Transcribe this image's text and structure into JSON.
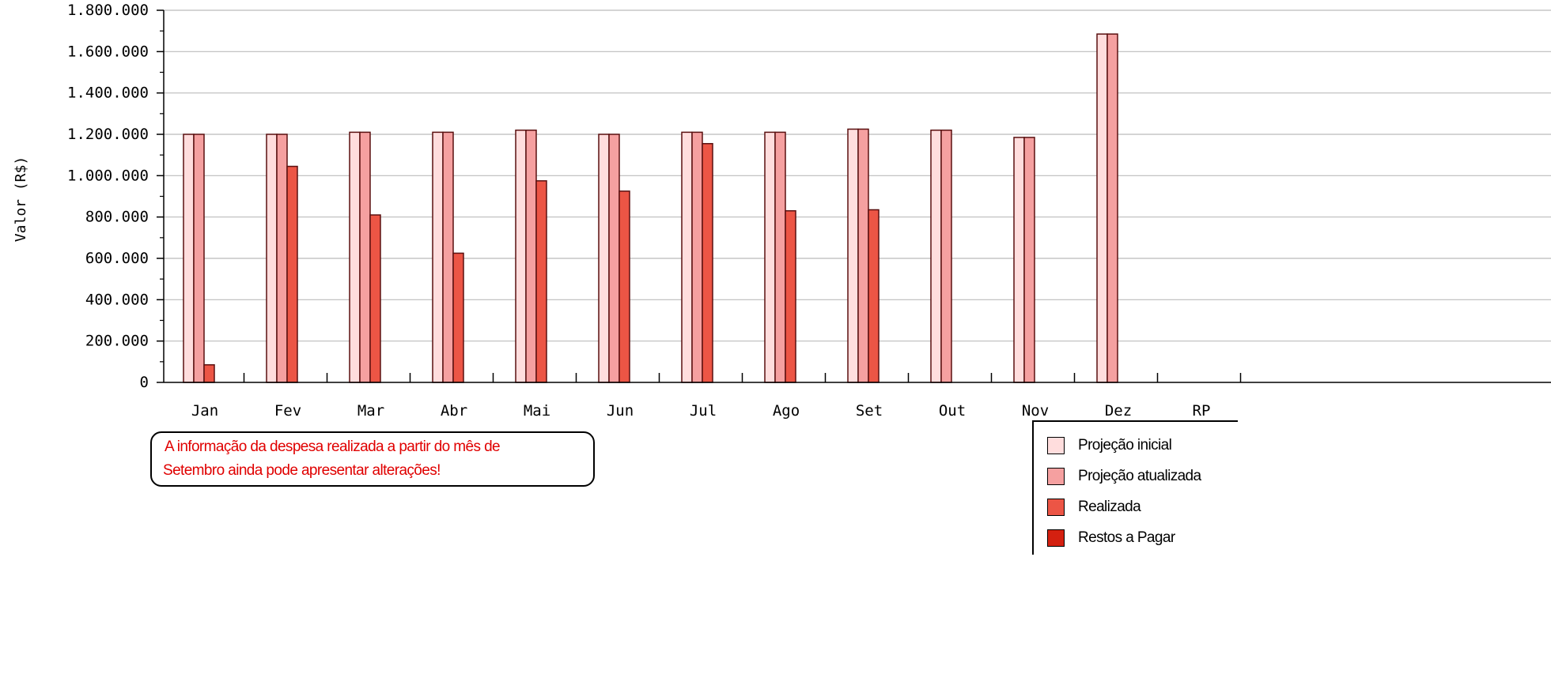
{
  "chart_data": {
    "type": "bar",
    "ylabel": "Valor (R$)",
    "xlabel": "",
    "ylim": [
      0,
      1800000
    ],
    "y_ticks": [
      "0",
      "200.000",
      "400.000",
      "600.000",
      "800.000",
      "1.000.000",
      "1.200.000",
      "1.400.000",
      "1.600.000",
      "1.800.000"
    ],
    "categories": [
      "Jan",
      "Fev",
      "Mar",
      "Abr",
      "Mai",
      "Jun",
      "Jul",
      "Ago",
      "Set",
      "Out",
      "Nov",
      "Dez",
      "RP"
    ],
    "grid": true,
    "legend_position": "bottom-right",
    "series": [
      {
        "name": "Projeção inicial",
        "color": "#ffdddd",
        "values": [
          1200000,
          1200000,
          1210000,
          1210000,
          1220000,
          1200000,
          1210000,
          1210000,
          1225000,
          1220000,
          1185000,
          1685000,
          null
        ]
      },
      {
        "name": "Projeção atualizada",
        "color": "#f5a0a0",
        "values": [
          1200000,
          1200000,
          1210000,
          1210000,
          1220000,
          1200000,
          1210000,
          1210000,
          1225000,
          1220000,
          1185000,
          1685000,
          null
        ]
      },
      {
        "name": "Realizada",
        "color": "#ec5545",
        "values": [
          85000,
          1045000,
          810000,
          625000,
          975000,
          925000,
          1155000,
          830000,
          835000,
          null,
          null,
          null,
          null
        ]
      },
      {
        "name": "Restos a Pagar",
        "color": "#d42010",
        "values": [
          null,
          null,
          null,
          null,
          null,
          null,
          null,
          null,
          null,
          null,
          null,
          null,
          null
        ]
      }
    ]
  },
  "note": {
    "line1": "A informação da despesa realizada a partir do mês de",
    "line2": "Setembro ainda pode apresentar alterações!"
  }
}
